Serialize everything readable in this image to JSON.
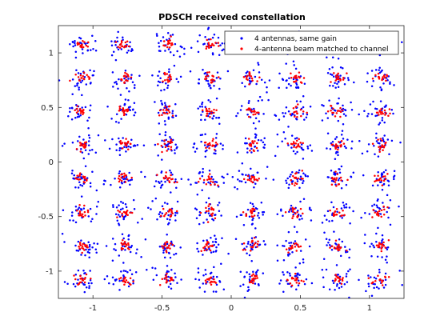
{
  "chart_data": {
    "type": "scatter",
    "title": "PDSCH received constellation",
    "xlabel": "",
    "ylabel": "",
    "xlim": [
      -1.25,
      1.25
    ],
    "ylim": [
      -1.25,
      1.25
    ],
    "xticks": [
      -1,
      -0.5,
      0,
      0.5,
      1
    ],
    "yticks": [
      -1,
      -0.5,
      0,
      0.5,
      1
    ],
    "xtick_labels": [
      "-1",
      "-0.5",
      "0",
      "0.5",
      "1"
    ],
    "ytick_labels": [
      "-1",
      "-0.5",
      "0",
      "0.5",
      "1"
    ],
    "grid": false,
    "legend_position": "top-right",
    "constellation": "64-QAM",
    "constellation_levels": [
      -1.0801,
      -0.7715,
      -0.4629,
      -0.1543,
      0.1543,
      0.4629,
      0.7715,
      1.0801
    ],
    "series": [
      {
        "name": "4 antennas, same gain",
        "color": "#0000ff",
        "marker": "dot",
        "spread": 0.058,
        "points_per_symbol": 26
      },
      {
        "name": "4-antenna beam matched to channel",
        "color": "#ff0000",
        "marker": "dot",
        "spread": 0.027,
        "points_per_symbol": 16
      }
    ]
  }
}
